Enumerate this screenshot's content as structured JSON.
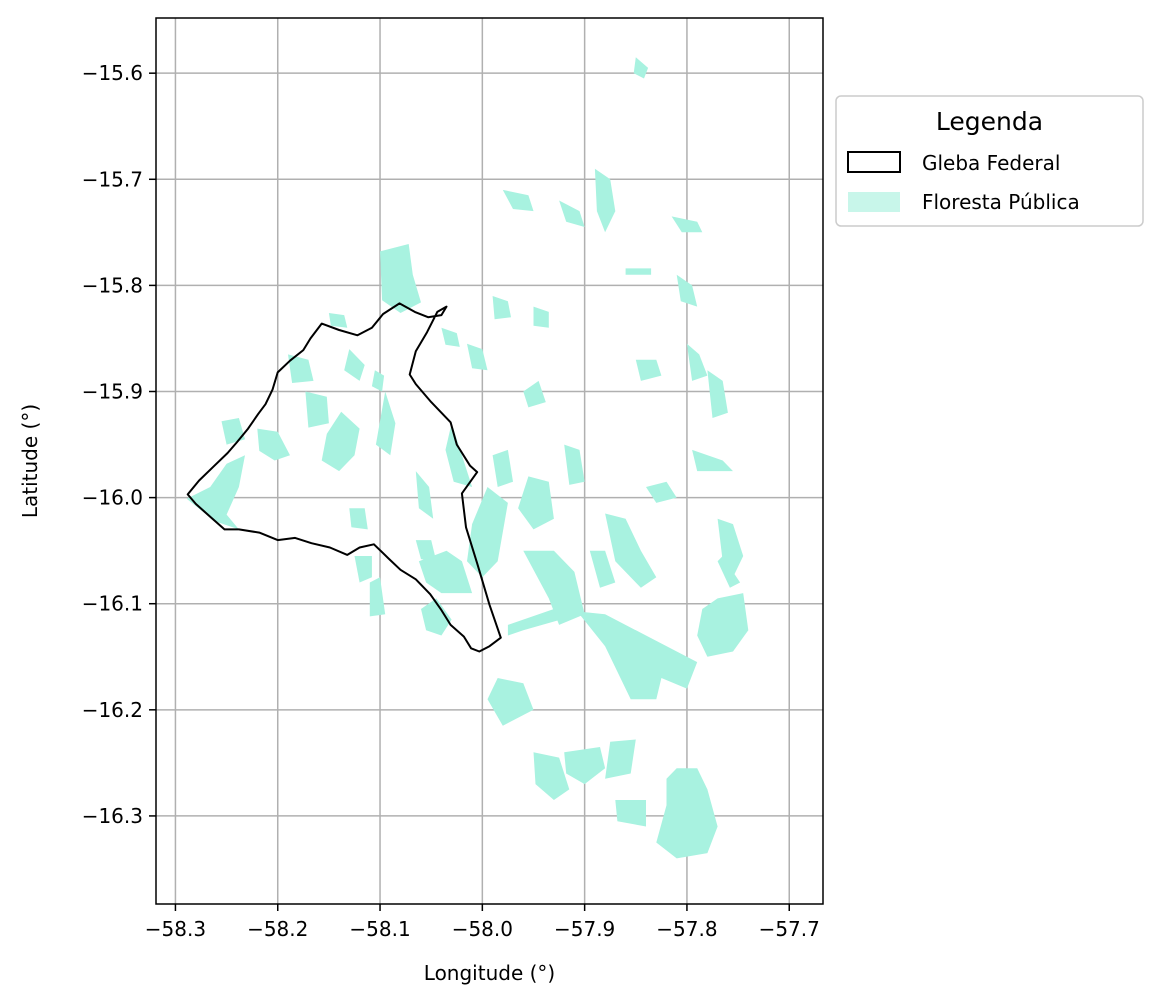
{
  "chart_data": {
    "type": "map",
    "xlabel": "Longitude (°)",
    "ylabel": "Latitude (°)",
    "xlim": [
      -58.319,
      -57.667
    ],
    "ylim": [
      -16.383,
      -15.548
    ],
    "x_ticks": [
      -58.3,
      -58.2,
      -58.1,
      -58.0,
      -57.9,
      -57.8,
      -57.7
    ],
    "x_tick_labels": [
      "−58.3",
      "−58.2",
      "−58.1",
      "−58.0",
      "−57.9",
      "−57.8",
      "−57.7"
    ],
    "y_ticks": [
      -15.6,
      -15.7,
      -15.8,
      -15.9,
      -16.0,
      -16.1,
      -16.2,
      -16.3
    ],
    "y_tick_labels": [
      "−15.6",
      "−15.7",
      "−15.8",
      "−15.9",
      "−16.0",
      "−16.1",
      "−16.2",
      "−16.3"
    ],
    "grid": true,
    "legend": {
      "title": "Legenda",
      "placement": "outside-right",
      "entries": [
        {
          "label": "Gleba Federal",
          "style": "outline",
          "color": "#000000"
        },
        {
          "label": "Floresta Pública",
          "style": "fill",
          "color": "#a8f2e0"
        }
      ]
    },
    "colors": {
      "floresta": "#a8f2e0",
      "gleba": "#000000",
      "grid": "#b0b0b0"
    },
    "gleba_federal": [
      [
        -58.288,
        -15.997
      ],
      [
        -58.277,
        -15.984
      ],
      [
        -58.262,
        -15.97
      ],
      [
        -58.249,
        -15.958
      ],
      [
        -58.24,
        -15.948
      ],
      [
        -58.229,
        -15.935
      ],
      [
        -58.219,
        -15.921
      ],
      [
        -58.212,
        -15.912
      ],
      [
        -58.205,
        -15.898
      ],
      [
        -58.2,
        -15.882
      ],
      [
        -58.188,
        -15.871
      ],
      [
        -58.175,
        -15.861
      ],
      [
        -58.168,
        -15.85
      ],
      [
        -58.157,
        -15.836
      ],
      [
        -58.14,
        -15.842
      ],
      [
        -58.122,
        -15.847
      ],
      [
        -58.108,
        -15.84
      ],
      [
        -58.097,
        -15.827
      ],
      [
        -58.081,
        -15.817
      ],
      [
        -58.066,
        -15.825
      ],
      [
        -58.053,
        -15.83
      ],
      [
        -58.04,
        -15.828
      ],
      [
        -58.035,
        -15.82
      ],
      [
        -58.044,
        -15.825
      ],
      [
        -58.054,
        -15.844
      ],
      [
        -58.065,
        -15.862
      ],
      [
        -58.071,
        -15.884
      ],
      [
        -58.065,
        -15.893
      ],
      [
        -58.05,
        -15.91
      ],
      [
        -58.031,
        -15.929
      ],
      [
        -58.025,
        -15.95
      ],
      [
        -58.012,
        -15.97
      ],
      [
        -58.005,
        -15.976
      ],
      [
        -58.02,
        -15.996
      ],
      [
        -58.016,
        -16.028
      ],
      [
        -58.005,
        -16.062
      ],
      [
        -57.993,
        -16.101
      ],
      [
        -57.982,
        -16.132
      ],
      [
        -57.993,
        -16.14
      ],
      [
        -58.003,
        -16.145
      ],
      [
        -58.011,
        -16.142
      ],
      [
        -58.018,
        -16.131
      ],
      [
        -58.031,
        -16.12
      ],
      [
        -58.04,
        -16.106
      ],
      [
        -58.051,
        -16.091
      ],
      [
        -58.065,
        -16.077
      ],
      [
        -58.08,
        -16.068
      ],
      [
        -58.091,
        -16.058
      ],
      [
        -58.106,
        -16.044
      ],
      [
        -58.12,
        -16.047
      ],
      [
        -58.132,
        -16.054
      ],
      [
        -58.149,
        -16.047
      ],
      [
        -58.167,
        -16.043
      ],
      [
        -58.183,
        -16.038
      ],
      [
        -58.2,
        -16.04
      ],
      [
        -58.218,
        -16.033
      ],
      [
        -58.238,
        -16.03
      ],
      [
        -58.252,
        -16.03
      ],
      [
        -58.266,
        -16.018
      ],
      [
        -58.28,
        -16.006
      ],
      [
        -58.288,
        -15.997
      ]
    ],
    "floresta_publica": [
      [
        [
          -58.289,
          -16.001
        ],
        [
          -58.266,
          -15.99
        ],
        [
          -58.25,
          -15.968
        ],
        [
          -58.232,
          -15.96
        ],
        [
          -58.238,
          -15.99
        ],
        [
          -58.25,
          -16.016
        ],
        [
          -58.238,
          -16.03
        ],
        [
          -58.262,
          -16.022
        ]
      ],
      [
        [
          -58.1,
          -15.768
        ],
        [
          -58.072,
          -15.761
        ],
        [
          -58.068,
          -15.79
        ],
        [
          -58.06,
          -15.816
        ],
        [
          -58.08,
          -15.826
        ],
        [
          -58.098,
          -15.814
        ]
      ],
      [
        [
          -58.138,
          -15.919
        ],
        [
          -58.12,
          -15.935
        ],
        [
          -58.125,
          -15.96
        ],
        [
          -58.14,
          -15.975
        ],
        [
          -58.157,
          -15.965
        ],
        [
          -58.152,
          -15.94
        ]
      ],
      [
        [
          -58.22,
          -15.935
        ],
        [
          -58.2,
          -15.938
        ],
        [
          -58.188,
          -15.96
        ],
        [
          -58.203,
          -15.965
        ],
        [
          -58.218,
          -15.956
        ]
      ],
      [
        [
          -58.173,
          -15.9
        ],
        [
          -58.152,
          -15.905
        ],
        [
          -58.15,
          -15.93
        ],
        [
          -58.17,
          -15.934
        ]
      ],
      [
        [
          -58.095,
          -15.9
        ],
        [
          -58.085,
          -15.93
        ],
        [
          -58.09,
          -15.96
        ],
        [
          -58.104,
          -15.95
        ]
      ],
      [
        [
          -58.255,
          -15.928
        ],
        [
          -58.238,
          -15.925
        ],
        [
          -58.232,
          -15.945
        ],
        [
          -58.25,
          -15.95
        ]
      ],
      [
        [
          -58.03,
          -15.93
        ],
        [
          -58.02,
          -15.96
        ],
        [
          -58.01,
          -15.99
        ],
        [
          -58.028,
          -15.985
        ],
        [
          -58.036,
          -15.955
        ]
      ],
      [
        [
          -58.065,
          -15.975
        ],
        [
          -58.052,
          -15.99
        ],
        [
          -58.048,
          -16.02
        ],
        [
          -58.062,
          -16.01
        ]
      ],
      [
        [
          -58.19,
          -15.865
        ],
        [
          -58.17,
          -15.87
        ],
        [
          -58.165,
          -15.89
        ],
        [
          -58.186,
          -15.892
        ]
      ],
      [
        [
          -58.13,
          -15.86
        ],
        [
          -58.115,
          -15.875
        ],
        [
          -58.12,
          -15.89
        ],
        [
          -58.135,
          -15.88
        ]
      ],
      [
        [
          -58.0,
          -16.075
        ],
        [
          -57.985,
          -16.06
        ],
        [
          -57.975,
          -16.005
        ],
        [
          -57.995,
          -15.99
        ],
        [
          -58.01,
          -16.025
        ],
        [
          -58.015,
          -16.06
        ]
      ],
      [
        [
          -58.01,
          -16.09
        ],
        [
          -58.02,
          -16.06
        ],
        [
          -58.035,
          -16.05
        ],
        [
          -58.062,
          -16.06
        ],
        [
          -58.055,
          -16.08
        ],
        [
          -58.04,
          -16.09
        ]
      ],
      [
        [
          -58.06,
          -16.105
        ],
        [
          -58.045,
          -16.095
        ],
        [
          -58.03,
          -16.115
        ],
        [
          -58.04,
          -16.13
        ],
        [
          -58.055,
          -16.125
        ]
      ],
      [
        [
          -58.11,
          -16.08
        ],
        [
          -58.1,
          -16.075
        ],
        [
          -58.095,
          -16.11
        ],
        [
          -58.11,
          -16.112
        ]
      ],
      [
        [
          -58.125,
          -16.055
        ],
        [
          -58.108,
          -16.055
        ],
        [
          -58.108,
          -16.075
        ],
        [
          -58.12,
          -16.08
        ]
      ],
      [
        [
          -57.96,
          -16.05
        ],
        [
          -57.93,
          -16.05
        ],
        [
          -57.91,
          -16.07
        ],
        [
          -57.9,
          -16.11
        ],
        [
          -57.925,
          -16.12
        ],
        [
          -57.935,
          -16.095
        ]
      ],
      [
        [
          -57.975,
          -16.13
        ],
        [
          -57.96,
          -16.125
        ],
        [
          -57.905,
          -16.11
        ],
        [
          -57.88,
          -16.14
        ],
        [
          -57.855,
          -16.19
        ],
        [
          -57.83,
          -16.19
        ],
        [
          -57.825,
          -16.17
        ],
        [
          -57.8,
          -16.18
        ],
        [
          -57.79,
          -16.155
        ],
        [
          -57.84,
          -16.13
        ],
        [
          -57.88,
          -16.11
        ],
        [
          -57.93,
          -16.105
        ],
        [
          -57.975,
          -16.12
        ]
      ],
      [
        [
          -57.985,
          -16.17
        ],
        [
          -57.96,
          -16.175
        ],
        [
          -57.95,
          -16.2
        ],
        [
          -57.98,
          -16.215
        ],
        [
          -57.995,
          -16.19
        ]
      ],
      [
        [
          -57.95,
          -16.24
        ],
        [
          -57.925,
          -16.245
        ],
        [
          -57.915,
          -16.275
        ],
        [
          -57.93,
          -16.285
        ],
        [
          -57.948,
          -16.27
        ]
      ],
      [
        [
          -57.92,
          -16.24
        ],
        [
          -57.885,
          -16.235
        ],
        [
          -57.88,
          -16.255
        ],
        [
          -57.9,
          -16.27
        ],
        [
          -57.918,
          -16.26
        ]
      ],
      [
        [
          -57.875,
          -16.23
        ],
        [
          -57.85,
          -16.228
        ],
        [
          -57.855,
          -16.26
        ],
        [
          -57.88,
          -16.265
        ]
      ],
      [
        [
          -57.81,
          -16.255
        ],
        [
          -57.79,
          -16.255
        ],
        [
          -57.78,
          -16.275
        ],
        [
          -57.77,
          -16.31
        ],
        [
          -57.78,
          -16.335
        ],
        [
          -57.81,
          -16.34
        ],
        [
          -57.83,
          -16.325
        ],
        [
          -57.82,
          -16.29
        ],
        [
          -57.82,
          -16.265
        ]
      ],
      [
        [
          -57.87,
          -16.285
        ],
        [
          -57.84,
          -16.285
        ],
        [
          -57.84,
          -16.31
        ],
        [
          -57.868,
          -16.305
        ]
      ],
      [
        [
          -57.77,
          -16.095
        ],
        [
          -57.745,
          -16.09
        ],
        [
          -57.74,
          -16.125
        ],
        [
          -57.755,
          -16.145
        ],
        [
          -57.78,
          -16.15
        ],
        [
          -57.79,
          -16.13
        ],
        [
          -57.785,
          -16.105
        ]
      ],
      [
        [
          -57.955,
          -15.98
        ],
        [
          -57.935,
          -15.985
        ],
        [
          -57.93,
          -16.02
        ],
        [
          -57.95,
          -16.03
        ],
        [
          -57.965,
          -16.01
        ]
      ],
      [
        [
          -57.99,
          -15.96
        ],
        [
          -57.975,
          -15.955
        ],
        [
          -57.97,
          -15.985
        ],
        [
          -57.985,
          -15.99
        ]
      ],
      [
        [
          -57.88,
          -16.015
        ],
        [
          -57.86,
          -16.02
        ],
        [
          -57.845,
          -16.05
        ],
        [
          -57.83,
          -16.075
        ],
        [
          -57.845,
          -16.085
        ],
        [
          -57.87,
          -16.06
        ]
      ],
      [
        [
          -57.895,
          -16.05
        ],
        [
          -57.88,
          -16.05
        ],
        [
          -57.87,
          -16.08
        ],
        [
          -57.885,
          -16.085
        ]
      ],
      [
        [
          -57.77,
          -16.02
        ],
        [
          -57.755,
          -16.025
        ],
        [
          -57.745,
          -16.055
        ],
        [
          -57.755,
          -16.075
        ],
        [
          -57.765,
          -16.06
        ]
      ],
      [
        [
          -57.795,
          -15.955
        ],
        [
          -57.765,
          -15.965
        ],
        [
          -57.755,
          -15.975
        ],
        [
          -57.79,
          -15.975
        ]
      ],
      [
        [
          -57.84,
          -15.99
        ],
        [
          -57.82,
          -15.985
        ],
        [
          -57.81,
          -16.0
        ],
        [
          -57.83,
          -16.005
        ]
      ],
      [
        [
          -57.85,
          -15.87
        ],
        [
          -57.83,
          -15.87
        ],
        [
          -57.825,
          -15.885
        ],
        [
          -57.845,
          -15.89
        ]
      ],
      [
        [
          -57.96,
          -15.9
        ],
        [
          -57.945,
          -15.89
        ],
        [
          -57.938,
          -15.91
        ],
        [
          -57.955,
          -15.915
        ]
      ],
      [
        [
          -57.99,
          -15.81
        ],
        [
          -57.975,
          -15.815
        ],
        [
          -57.972,
          -15.83
        ],
        [
          -57.988,
          -15.832
        ]
      ],
      [
        [
          -57.95,
          -15.82
        ],
        [
          -57.935,
          -15.825
        ],
        [
          -57.935,
          -15.84
        ],
        [
          -57.95,
          -15.838
        ]
      ],
      [
        [
          -57.86,
          -15.784
        ],
        [
          -57.835,
          -15.784
        ],
        [
          -57.835,
          -15.79
        ],
        [
          -57.86,
          -15.79
        ]
      ],
      [
        [
          -57.89,
          -15.69
        ],
        [
          -57.875,
          -15.7
        ],
        [
          -57.87,
          -15.73
        ],
        [
          -57.88,
          -15.75
        ],
        [
          -57.888,
          -15.73
        ]
      ],
      [
        [
          -57.98,
          -15.71
        ],
        [
          -57.955,
          -15.715
        ],
        [
          -57.95,
          -15.73
        ],
        [
          -57.97,
          -15.728
        ]
      ],
      [
        [
          -57.925,
          -15.72
        ],
        [
          -57.905,
          -15.73
        ],
        [
          -57.9,
          -15.745
        ],
        [
          -57.918,
          -15.74
        ]
      ],
      [
        [
          -57.815,
          -15.735
        ],
        [
          -57.79,
          -15.74
        ],
        [
          -57.785,
          -15.75
        ],
        [
          -57.805,
          -15.75
        ]
      ],
      [
        [
          -57.81,
          -15.79
        ],
        [
          -57.795,
          -15.8
        ],
        [
          -57.79,
          -15.82
        ],
        [
          -57.806,
          -15.815
        ]
      ],
      [
        [
          -57.85,
          -15.585
        ],
        [
          -57.838,
          -15.595
        ],
        [
          -57.842,
          -15.605
        ],
        [
          -57.852,
          -15.6
        ]
      ],
      [
        [
          -57.8,
          -15.855
        ],
        [
          -57.788,
          -15.865
        ],
        [
          -57.78,
          -15.885
        ],
        [
          -57.795,
          -15.89
        ]
      ],
      [
        [
          -57.78,
          -15.88
        ],
        [
          -57.765,
          -15.89
        ],
        [
          -57.76,
          -15.92
        ],
        [
          -57.775,
          -15.925
        ]
      ],
      [
        [
          -57.92,
          -15.95
        ],
        [
          -57.905,
          -15.955
        ],
        [
          -57.9,
          -15.985
        ],
        [
          -57.915,
          -15.988
        ]
      ],
      [
        [
          -58.015,
          -15.855
        ],
        [
          -58.0,
          -15.86
        ],
        [
          -57.995,
          -15.88
        ],
        [
          -58.01,
          -15.878
        ]
      ],
      [
        [
          -58.04,
          -15.84
        ],
        [
          -58.025,
          -15.845
        ],
        [
          -58.022,
          -15.858
        ],
        [
          -58.036,
          -15.856
        ]
      ],
      [
        [
          -58.15,
          -15.826
        ],
        [
          -58.135,
          -15.828
        ],
        [
          -58.132,
          -15.84
        ],
        [
          -58.148,
          -15.838
        ]
      ],
      [
        [
          -58.105,
          -15.88
        ],
        [
          -58.096,
          -15.885
        ],
        [
          -58.098,
          -15.9
        ],
        [
          -58.108,
          -15.895
        ]
      ],
      [
        [
          -58.085,
          -15.79
        ],
        [
          -58.095,
          -15.795
        ],
        [
          -58.092,
          -15.81
        ],
        [
          -58.082,
          -15.805
        ]
      ],
      [
        [
          -58.065,
          -16.04
        ],
        [
          -58.05,
          -16.04
        ],
        [
          -58.045,
          -16.06
        ],
        [
          -58.06,
          -16.058
        ]
      ],
      [
        [
          -58.13,
          -16.01
        ],
        [
          -58.115,
          -16.01
        ],
        [
          -58.112,
          -16.03
        ],
        [
          -58.128,
          -16.028
        ]
      ],
      [
        [
          -57.77,
          -16.06
        ],
        [
          -57.76,
          -16.05
        ],
        [
          -57.755,
          -16.07
        ],
        [
          -57.748,
          -16.08
        ],
        [
          -57.758,
          -16.085
        ]
      ]
    ]
  }
}
